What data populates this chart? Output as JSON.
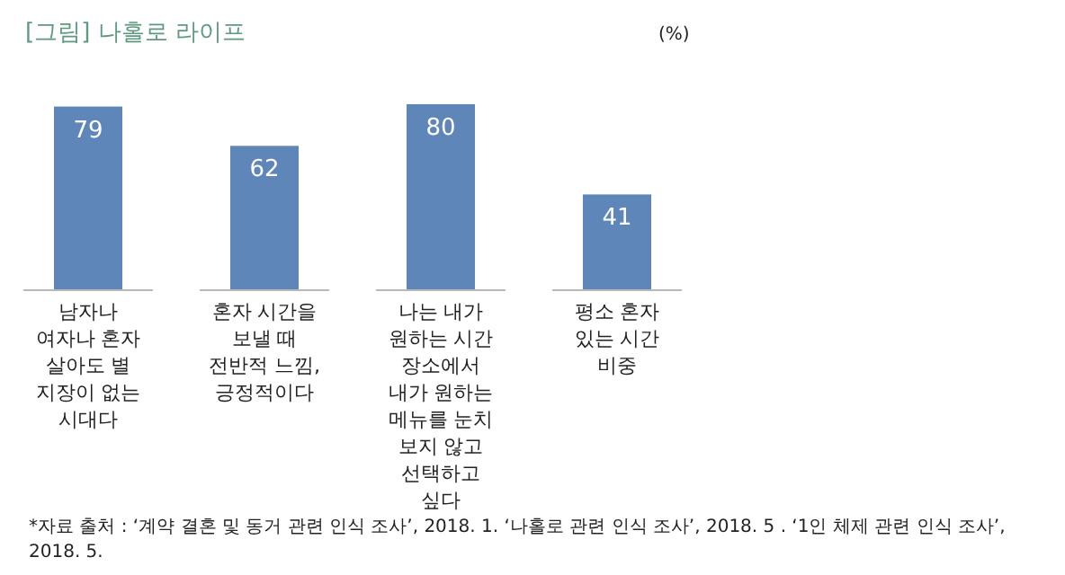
{
  "chart_data": {
    "type": "bar",
    "title": "[그림] 나홀로 라이프",
    "ylabel": "(%)",
    "categories": [
      "남자나 여자나 혼자 살아도 별 지장이 없는 시대다",
      "혼자 시간을 보낼 때 전반적 느낌, 긍정적이다",
      "나는 내가 원하는 시간 장소에서 내가 원하는 메뉴를 눈치 보지 않고 선택하고 싶다",
      "평소 혼자 있는 시간 비중"
    ],
    "values": [
      79,
      62,
      80,
      41
    ],
    "color": "#5f86b8",
    "data_labels": true,
    "annotations": [
      "*자료 출처 : ‘계약 결혼 및 동거 관련 인식 조사’, 2018. 1. ‘나홀로 관련 인식 조사’, 2018. 5 . ‘1인 체제 관련 인식 조사’, 2018. 5."
    ]
  }
}
